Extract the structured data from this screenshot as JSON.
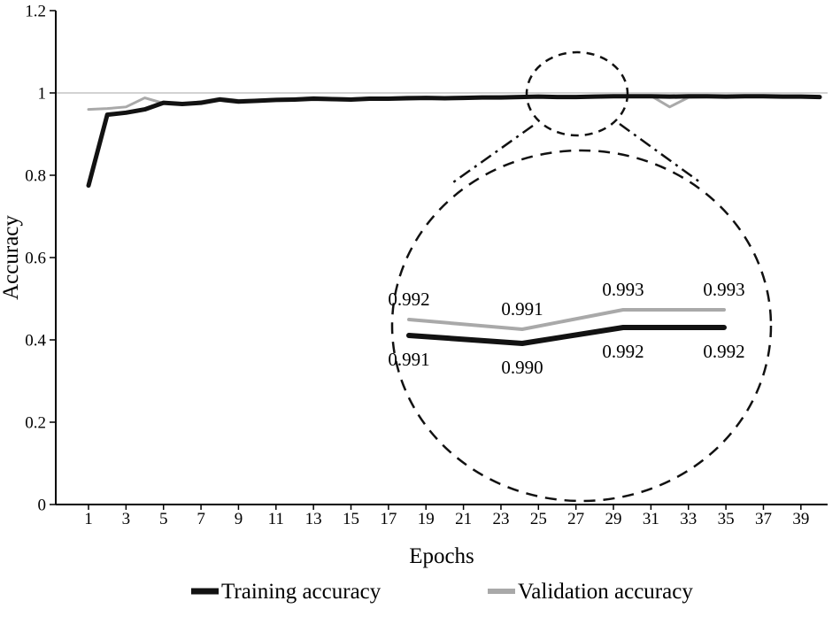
{
  "chart_data": {
    "type": "line",
    "title": "",
    "xlabel": "Epochs",
    "ylabel": "Accuracy",
    "xlim": [
      0,
      41
    ],
    "ylim": [
      0,
      1.2
    ],
    "grid": {
      "y_line_at": 1,
      "color": "#b9b9b9"
    },
    "x_ticks": [
      1,
      3,
      5,
      7,
      9,
      11,
      13,
      15,
      17,
      19,
      21,
      23,
      25,
      27,
      29,
      31,
      33,
      35,
      37,
      39
    ],
    "y_ticks": [
      "0",
      "0.2",
      "0.4",
      "0.6",
      "0.8",
      "1",
      "1.2"
    ],
    "x": [
      1,
      2,
      3,
      4,
      5,
      6,
      7,
      8,
      9,
      10,
      11,
      12,
      13,
      14,
      15,
      16,
      17,
      18,
      19,
      20,
      21,
      22,
      23,
      24,
      25,
      26,
      27,
      28,
      29,
      30,
      31,
      32,
      33,
      34,
      35,
      36,
      37,
      38,
      39,
      40
    ],
    "series": [
      {
        "name": "Training accuracy",
        "color": "#121212",
        "width": 5,
        "values": [
          0.775,
          0.947,
          0.952,
          0.96,
          0.976,
          0.973,
          0.976,
          0.984,
          0.979,
          0.981,
          0.983,
          0.984,
          0.986,
          0.985,
          0.984,
          0.986,
          0.986,
          0.987,
          0.988,
          0.987,
          0.988,
          0.989,
          0.989,
          0.99,
          0.991,
          0.99,
          0.99,
          0.991,
          0.992,
          0.992,
          0.992,
          0.991,
          0.992,
          0.992,
          0.991,
          0.992,
          0.992,
          0.991,
          0.991,
          0.99
        ]
      },
      {
        "name": "Validation accuracy",
        "color": "#a9a9a9",
        "width": 3,
        "values": [
          0.96,
          0.962,
          0.966,
          0.988,
          0.975,
          0.973,
          0.979,
          0.987,
          0.982,
          0.983,
          0.985,
          0.986,
          0.989,
          0.987,
          0.986,
          0.988,
          0.988,
          0.99,
          0.989,
          0.989,
          0.99,
          0.99,
          0.991,
          0.99,
          0.992,
          0.991,
          0.991,
          0.992,
          0.993,
          0.993,
          0.993,
          0.966,
          0.989,
          0.99,
          0.991,
          0.992,
          0.992,
          0.992,
          0.991,
          0.991
        ]
      }
    ],
    "inset": {
      "validation": [
        0.992,
        0.991,
        0.993,
        0.993
      ],
      "training": [
        0.991,
        0.99,
        0.992,
        0.992
      ]
    },
    "legend": {
      "position": "bottom",
      "entries": [
        "Training accuracy",
        "Validation accuracy"
      ]
    }
  }
}
